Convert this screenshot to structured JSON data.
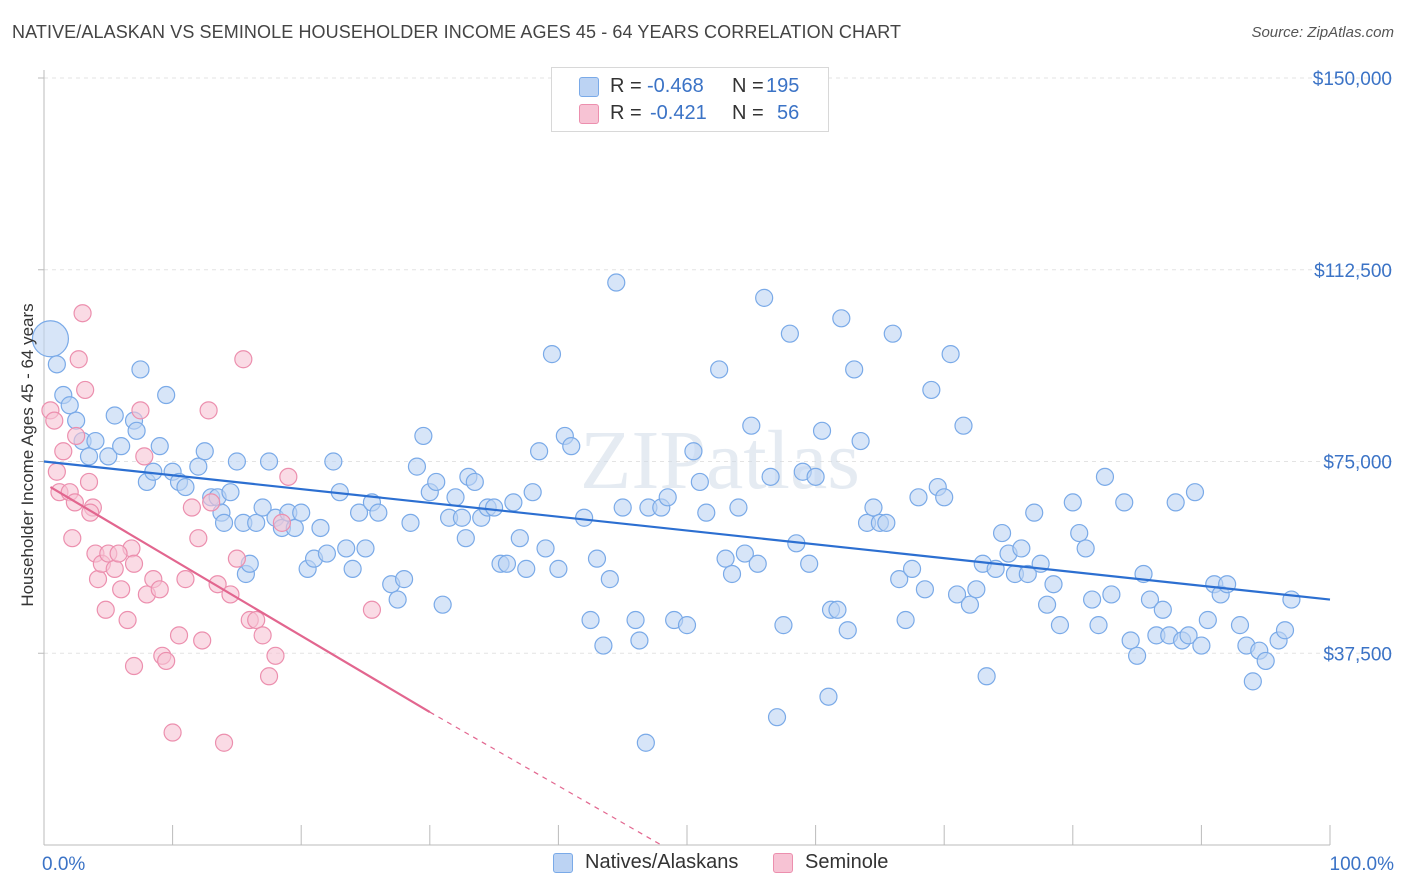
{
  "chart_data": {
    "type": "scatter",
    "title": "NATIVE/ALASKAN VS SEMINOLE HOUSEHOLDER INCOME AGES 45 - 64 YEARS CORRELATION CHART",
    "source": "Source: ZipAtlas.com",
    "watermark": "ZIPatlas",
    "xlabel": "",
    "ylabel": "Householder Income Ages 45 - 64 years",
    "xlim": [
      0,
      100
    ],
    "ylim": [
      0,
      155000
    ],
    "x_tick_labels": {
      "left": "0.0%",
      "right": "100.0%"
    },
    "y_ticks": [
      {
        "value": 150000,
        "label": "$150,000"
      },
      {
        "value": 112500,
        "label": "$112,500"
      },
      {
        "value": 75000,
        "label": "$75,000"
      },
      {
        "value": 37500,
        "label": "$37,500"
      }
    ],
    "legend": {
      "r_label": "R =",
      "n_label": "N =",
      "entries": [
        {
          "name": "Natives/Alaskans",
          "r": "-0.468",
          "n": "195",
          "color": "#7aaae8",
          "fill": "#bcd3f3"
        },
        {
          "name": "Seminole",
          "r": "-0.421",
          "n": "56",
          "color": "#ec8fae",
          "fill": "#f7c3d4"
        }
      ]
    },
    "series": [
      {
        "name": "Natives/Alaskans",
        "color": "#7aaae8",
        "trend": {
          "x0": 0,
          "y0": 75000,
          "x1": 100,
          "y1": 48000,
          "dash_to": null
        },
        "points": [
          [
            0.5,
            99000
          ],
          [
            1,
            94000
          ],
          [
            1.5,
            88000
          ],
          [
            2,
            86000
          ],
          [
            2.5,
            83000
          ],
          [
            3,
            79000
          ],
          [
            3.5,
            76000
          ],
          [
            4,
            79000
          ],
          [
            5,
            76000
          ],
          [
            5.5,
            84000
          ],
          [
            6,
            78000
          ],
          [
            7,
            83000
          ],
          [
            7.2,
            81000
          ],
          [
            7.5,
            93000
          ],
          [
            8,
            71000
          ],
          [
            8.5,
            73000
          ],
          [
            9,
            78000
          ],
          [
            9.5,
            88000
          ],
          [
            10,
            73000
          ],
          [
            10.5,
            71000
          ],
          [
            11,
            70000
          ],
          [
            12,
            74000
          ],
          [
            12.5,
            77000
          ],
          [
            13,
            68000
          ],
          [
            13.5,
            68000
          ],
          [
            13.8,
            65000
          ],
          [
            14,
            63000
          ],
          [
            14.5,
            69000
          ],
          [
            15,
            75000
          ],
          [
            15.5,
            63000
          ],
          [
            15.7,
            53000
          ],
          [
            16,
            55000
          ],
          [
            16.5,
            63000
          ],
          [
            17,
            66000
          ],
          [
            17.5,
            75000
          ],
          [
            18,
            64000
          ],
          [
            18.5,
            62000
          ],
          [
            19,
            65000
          ],
          [
            19.5,
            62000
          ],
          [
            20,
            65000
          ],
          [
            20.5,
            54000
          ],
          [
            21,
            56000
          ],
          [
            21.5,
            62000
          ],
          [
            22,
            57000
          ],
          [
            22.5,
            75000
          ],
          [
            23,
            69000
          ],
          [
            23.5,
            58000
          ],
          [
            24,
            54000
          ],
          [
            24.5,
            65000
          ],
          [
            25,
            58000
          ],
          [
            25.5,
            67000
          ],
          [
            26,
            65000
          ],
          [
            27,
            51000
          ],
          [
            27.5,
            48000
          ],
          [
            28,
            52000
          ],
          [
            28.5,
            63000
          ],
          [
            29,
            74000
          ],
          [
            29.5,
            80000
          ],
          [
            30,
            69000
          ],
          [
            30.5,
            71000
          ],
          [
            31,
            47000
          ],
          [
            31.5,
            64000
          ],
          [
            32,
            68000
          ],
          [
            32.5,
            64000
          ],
          [
            32.8,
            60000
          ],
          [
            33,
            72000
          ],
          [
            33.5,
            71000
          ],
          [
            34,
            64000
          ],
          [
            34.5,
            66000
          ],
          [
            35,
            66000
          ],
          [
            35.5,
            55000
          ],
          [
            36,
            55000
          ],
          [
            36.5,
            67000
          ],
          [
            37,
            60000
          ],
          [
            37.5,
            54000
          ],
          [
            38,
            69000
          ],
          [
            38.5,
            77000
          ],
          [
            39,
            58000
          ],
          [
            39.5,
            96000
          ],
          [
            40,
            54000
          ],
          [
            40.5,
            80000
          ],
          [
            41,
            78000
          ],
          [
            42,
            64000
          ],
          [
            42.5,
            44000
          ],
          [
            43,
            56000
          ],
          [
            43.5,
            39000
          ],
          [
            44,
            52000
          ],
          [
            44.5,
            110000
          ],
          [
            45,
            66000
          ],
          [
            46,
            44000
          ],
          [
            46.3,
            40000
          ],
          [
            46.8,
            20000
          ],
          [
            47,
            66000
          ],
          [
            48,
            66000
          ],
          [
            48.5,
            68000
          ],
          [
            49,
            44000
          ],
          [
            50,
            43000
          ],
          [
            50.5,
            77000
          ],
          [
            51,
            71000
          ],
          [
            51.5,
            65000
          ],
          [
            52.5,
            93000
          ],
          [
            53,
            56000
          ],
          [
            53.5,
            53000
          ],
          [
            54,
            66000
          ],
          [
            54.5,
            57000
          ],
          [
            55,
            82000
          ],
          [
            55.5,
            55000
          ],
          [
            56,
            107000
          ],
          [
            56.5,
            72000
          ],
          [
            57,
            25000
          ],
          [
            57.5,
            43000
          ],
          [
            58,
            100000
          ],
          [
            58.5,
            59000
          ],
          [
            59,
            73000
          ],
          [
            59.5,
            55000
          ],
          [
            60,
            72000
          ],
          [
            60.5,
            81000
          ],
          [
            61,
            29000
          ],
          [
            61.2,
            46000
          ],
          [
            61.7,
            46000
          ],
          [
            62,
            103000
          ],
          [
            62.5,
            42000
          ],
          [
            63,
            93000
          ],
          [
            63.5,
            79000
          ],
          [
            64,
            63000
          ],
          [
            64.5,
            66000
          ],
          [
            65,
            63000
          ],
          [
            65.5,
            63000
          ],
          [
            66,
            100000
          ],
          [
            66.5,
            52000
          ],
          [
            67,
            44000
          ],
          [
            67.5,
            54000
          ],
          [
            68,
            68000
          ],
          [
            68.5,
            50000
          ],
          [
            69,
            89000
          ],
          [
            69.5,
            70000
          ],
          [
            70,
            68000
          ],
          [
            70.5,
            96000
          ],
          [
            71,
            49000
          ],
          [
            71.5,
            82000
          ],
          [
            72,
            47000
          ],
          [
            72.5,
            50000
          ],
          [
            73,
            55000
          ],
          [
            73.3,
            33000
          ],
          [
            74,
            54000
          ],
          [
            74.5,
            61000
          ],
          [
            75,
            57000
          ],
          [
            75.5,
            53000
          ],
          [
            76,
            58000
          ],
          [
            76.5,
            53000
          ],
          [
            77,
            65000
          ],
          [
            77.5,
            55000
          ],
          [
            78,
            47000
          ],
          [
            78.5,
            51000
          ],
          [
            79,
            43000
          ],
          [
            80,
            67000
          ],
          [
            80.5,
            61000
          ],
          [
            81,
            58000
          ],
          [
            81.5,
            48000
          ],
          [
            82,
            43000
          ],
          [
            82.5,
            72000
          ],
          [
            83,
            49000
          ],
          [
            84,
            67000
          ],
          [
            84.5,
            40000
          ],
          [
            85,
            37000
          ],
          [
            85.5,
            53000
          ],
          [
            86,
            48000
          ],
          [
            86.5,
            41000
          ],
          [
            87,
            46000
          ],
          [
            87.5,
            41000
          ],
          [
            88,
            67000
          ],
          [
            88.5,
            40000
          ],
          [
            89,
            41000
          ],
          [
            89.5,
            69000
          ],
          [
            90,
            39000
          ],
          [
            90.5,
            44000
          ],
          [
            91,
            51000
          ],
          [
            91.5,
            49000
          ],
          [
            92,
            51000
          ],
          [
            93,
            43000
          ],
          [
            93.5,
            39000
          ],
          [
            94,
            32000
          ],
          [
            94.5,
            38000
          ],
          [
            95,
            36000
          ],
          [
            96,
            40000
          ],
          [
            96.5,
            42000
          ],
          [
            97,
            48000
          ]
        ]
      },
      {
        "name": "Seminole",
        "color": "#ec8fae",
        "trend": {
          "x0": 0.5,
          "y0": 70000,
          "x1": 30,
          "y1": 26000,
          "dash_to": {
            "x": 48,
            "y": 0
          }
        },
        "points": [
          [
            0.5,
            85000
          ],
          [
            0.8,
            83000
          ],
          [
            1,
            73000
          ],
          [
            1.2,
            69000
          ],
          [
            1.5,
            77000
          ],
          [
            2,
            69000
          ],
          [
            2.2,
            60000
          ],
          [
            2.5,
            80000
          ],
          [
            2.7,
            95000
          ],
          [
            3,
            104000
          ],
          [
            3.2,
            89000
          ],
          [
            3.5,
            71000
          ],
          [
            3.8,
            66000
          ],
          [
            4,
            57000
          ],
          [
            4.2,
            52000
          ],
          [
            4.5,
            55000
          ],
          [
            4.8,
            46000
          ],
          [
            5,
            57000
          ],
          [
            5.5,
            54000
          ],
          [
            6,
            50000
          ],
          [
            6.5,
            44000
          ],
          [
            6.8,
            58000
          ],
          [
            7,
            55000
          ],
          [
            7.5,
            85000
          ],
          [
            7.8,
            76000
          ],
          [
            8,
            49000
          ],
          [
            8.5,
            52000
          ],
          [
            9,
            50000
          ],
          [
            9.2,
            37000
          ],
          [
            9.5,
            36000
          ],
          [
            10,
            22000
          ],
          [
            10.5,
            41000
          ],
          [
            11,
            52000
          ],
          [
            11.5,
            66000
          ],
          [
            12,
            60000
          ],
          [
            12.3,
            40000
          ],
          [
            12.8,
            85000
          ],
          [
            13,
            67000
          ],
          [
            13.5,
            51000
          ],
          [
            14,
            20000
          ],
          [
            14.5,
            49000
          ],
          [
            15,
            56000
          ],
          [
            15.5,
            95000
          ],
          [
            16,
            44000
          ],
          [
            16.5,
            44000
          ],
          [
            17,
            41000
          ],
          [
            17.5,
            33000
          ],
          [
            18,
            37000
          ],
          [
            18.5,
            63000
          ],
          [
            19,
            72000
          ],
          [
            25.5,
            46000
          ],
          [
            7,
            35000
          ],
          [
            5.8,
            57000
          ],
          [
            3.6,
            65000
          ],
          [
            2.4,
            67000
          ]
        ]
      }
    ]
  }
}
